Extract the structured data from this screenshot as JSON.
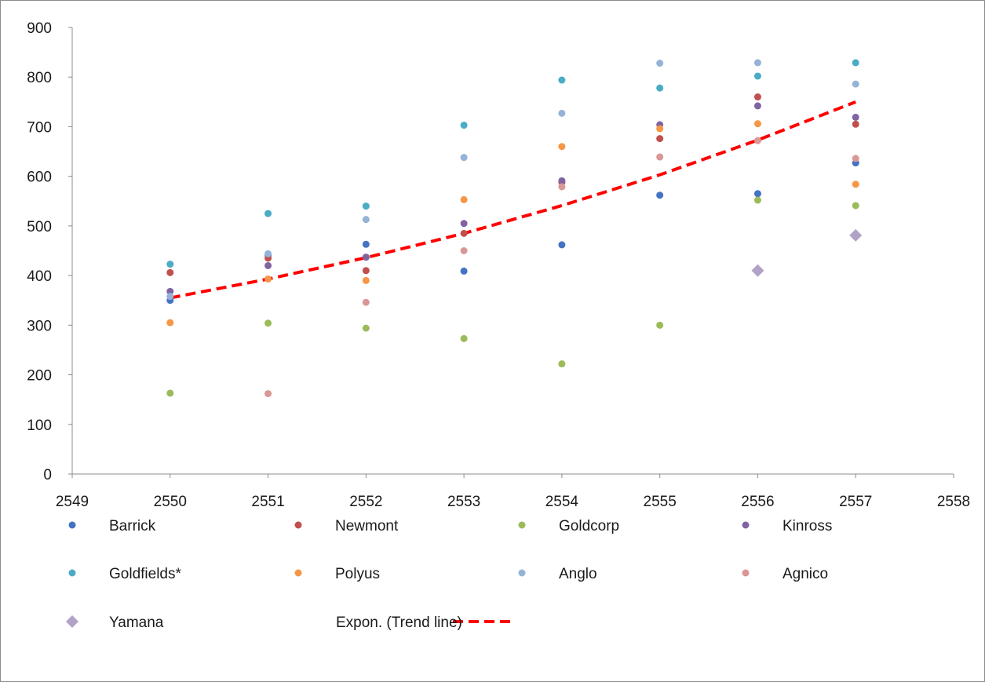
{
  "chart_data": {
    "type": "scatter",
    "title": "",
    "xlabel": "",
    "ylabel": "",
    "xlim": [
      2549,
      2558
    ],
    "ylim": [
      0,
      900
    ],
    "x_ticks": [
      "2549",
      "2550",
      "2551",
      "2552",
      "2553",
      "2554",
      "2555",
      "2556",
      "2557",
      "2558"
    ],
    "y_ticks": [
      "0",
      "100",
      "200",
      "300",
      "400",
      "500",
      "600",
      "700",
      "800",
      "900"
    ],
    "grid": false,
    "legend_position": "bottom",
    "series": [
      {
        "name": "Barrick",
        "color": "#4472c4",
        "marker": "circle",
        "points": [
          [
            2550,
            350
          ],
          [
            2551,
            441
          ],
          [
            2552,
            437
          ],
          [
            2552,
            463
          ],
          [
            2553,
            409
          ],
          [
            2554,
            462
          ],
          [
            2555,
            562
          ],
          [
            2556,
            565
          ],
          [
            2557,
            627
          ]
        ]
      },
      {
        "name": "Newmont",
        "color": "#c0504d",
        "marker": "circle",
        "points": [
          [
            2550,
            406
          ],
          [
            2551,
            435
          ],
          [
            2552,
            410
          ],
          [
            2553,
            485
          ],
          [
            2554,
            588
          ],
          [
            2555,
            676
          ],
          [
            2556,
            760
          ],
          [
            2557,
            705
          ]
        ]
      },
      {
        "name": "Goldcorp",
        "color": "#9bbb59",
        "marker": "circle",
        "points": [
          [
            2550,
            163
          ],
          [
            2551,
            304
          ],
          [
            2552,
            294
          ],
          [
            2553,
            273
          ],
          [
            2554,
            222
          ],
          [
            2555,
            300
          ],
          [
            2556,
            552
          ],
          [
            2557,
            541
          ]
        ]
      },
      {
        "name": "Kinross",
        "color": "#8064a2",
        "marker": "circle",
        "points": [
          [
            2550,
            368
          ],
          [
            2551,
            420
          ],
          [
            2552,
            437
          ],
          [
            2553,
            505
          ],
          [
            2554,
            591
          ],
          [
            2555,
            704
          ],
          [
            2556,
            742
          ],
          [
            2557,
            719
          ]
        ]
      },
      {
        "name": "Goldfields*",
        "color": "#4bacc6",
        "marker": "circle",
        "points": [
          [
            2550,
            423
          ],
          [
            2551,
            525
          ],
          [
            2552,
            540
          ],
          [
            2553,
            703
          ],
          [
            2554,
            794
          ],
          [
            2555,
            778
          ],
          [
            2556,
            802
          ],
          [
            2557,
            829
          ]
        ]
      },
      {
        "name": "Polyus",
        "color": "#f79646",
        "marker": "circle",
        "points": [
          [
            2550,
            305
          ],
          [
            2551,
            393
          ],
          [
            2552,
            390
          ],
          [
            2553,
            553
          ],
          [
            2554,
            660
          ],
          [
            2555,
            696
          ],
          [
            2556,
            706
          ],
          [
            2557,
            584
          ]
        ]
      },
      {
        "name": "Anglo",
        "color": "#95b3d7",
        "marker": "circle",
        "points": [
          [
            2550,
            358
          ],
          [
            2551,
            444
          ],
          [
            2552,
            513
          ],
          [
            2553,
            638
          ],
          [
            2554,
            727
          ],
          [
            2555,
            828
          ],
          [
            2556,
            829
          ],
          [
            2557,
            786
          ]
        ]
      },
      {
        "name": "Agnico",
        "color": "#d99795",
        "marker": "circle",
        "points": [
          [
            2551,
            162
          ],
          [
            2552,
            346
          ],
          [
            2553,
            450
          ],
          [
            2554,
            579
          ],
          [
            2555,
            639
          ],
          [
            2556,
            672
          ],
          [
            2557,
            636
          ]
        ]
      },
      {
        "name": "Yamana",
        "color": "#b3a2c7",
        "marker": "diamond",
        "points": [
          [
            2556,
            410
          ],
          [
            2557,
            481
          ]
        ]
      }
    ],
    "trendline": {
      "name": "Expon. (Trend line)",
      "color": "#ff0000",
      "style": "dashed",
      "x": [
        2550,
        2551,
        2552,
        2553,
        2554,
        2555,
        2556,
        2557
      ],
      "y": [
        355,
        393,
        436,
        485,
        541,
        603,
        673,
        750
      ]
    }
  }
}
